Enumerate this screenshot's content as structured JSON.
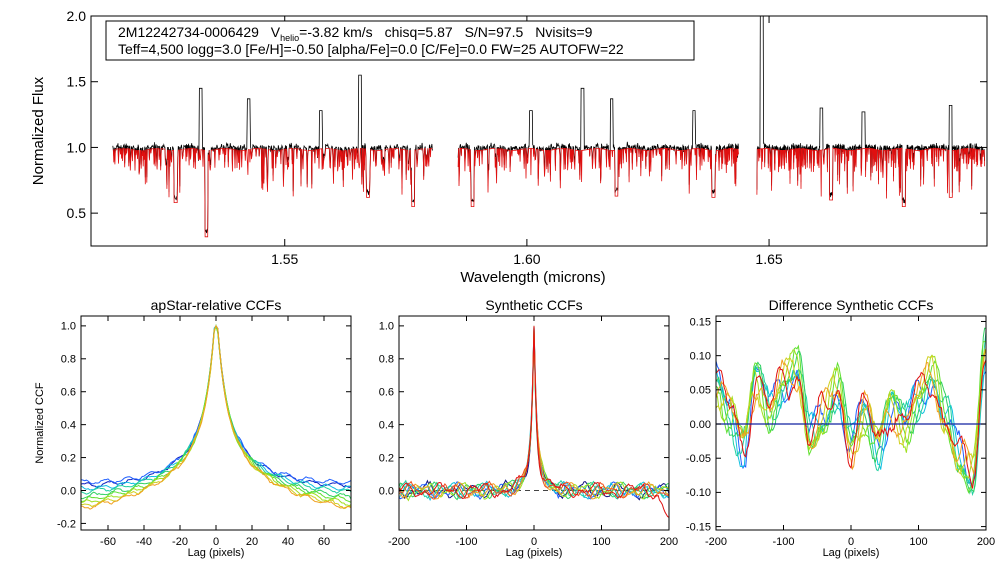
{
  "chart_data": [
    {
      "type": "line",
      "id": "spectrum",
      "title": "",
      "annotation": {
        "star": "2M12242734-0006429",
        "vhelio_prefix": "V",
        "vhelio_sub": "helio",
        "vhelio_value": "=-3.82 km/s",
        "chisq": "chisq=5.87",
        "sn": "S/N=97.5",
        "nvisits": "Nvisits=9",
        "line2": "Teff=4,500 logg=3.0 [Fe/H]=-0.50 [alpha/Fe]=0.0 [C/Fe]=0.0 FW=25 AUTOFW=22"
      },
      "xlabel": "Wavelength (microns)",
      "ylabel": "Normalized Flux",
      "xlim": [
        1.51,
        1.695
      ],
      "ylim": [
        0.25,
        2.0
      ],
      "xticks": [
        1.55,
        1.6,
        1.65
      ],
      "xtick_labels": [
        "1.55",
        "1.60",
        "1.65"
      ],
      "yticks": [
        0.5,
        1.0,
        1.5,
        2.0
      ],
      "ytick_labels": [
        "0.5",
        "1.0",
        "1.5",
        "2.0"
      ],
      "chips": [
        [
          1.5145,
          1.5805
        ],
        [
          1.5858,
          1.6437
        ],
        [
          1.6475,
          1.6945
        ]
      ],
      "observed_emission": [
        [
          1.5327,
          1.45
        ],
        [
          1.5425,
          1.37
        ],
        [
          1.5575,
          1.28
        ],
        [
          1.5655,
          1.55
        ],
        [
          1.6008,
          1.28
        ],
        [
          1.6115,
          1.45
        ],
        [
          1.6175,
          1.37
        ],
        [
          1.6345,
          1.28
        ],
        [
          1.6485,
          2.0
        ],
        [
          1.6608,
          1.3
        ],
        [
          1.6695,
          1.27
        ],
        [
          1.6875,
          1.32
        ]
      ],
      "absorption": [
        [
          1.5338,
          0.32
        ],
        [
          1.5275,
          0.58
        ],
        [
          1.5672,
          0.62
        ],
        [
          1.5765,
          0.55
        ],
        [
          1.5888,
          0.55
        ],
        [
          1.6185,
          0.63
        ],
        [
          1.6385,
          0.62
        ],
        [
          1.6778,
          0.55
        ],
        [
          1.6628,
          0.6
        ],
        [
          1.6875,
          0.62
        ]
      ],
      "series": [
        {
          "name": "observed",
          "color": "#000000"
        },
        {
          "name": "model",
          "color": "#e01010"
        }
      ]
    },
    {
      "type": "line",
      "id": "apstar_ccf",
      "title": "apStar-relative CCFs",
      "xlabel": "Lag (pixels)",
      "ylabel": "Normalized CCF",
      "xlim": [
        -75,
        75
      ],
      "ylim": [
        -0.24,
        1.06
      ],
      "xticks": [
        -60,
        -40,
        -20,
        0,
        20,
        40,
        60
      ],
      "xtick_labels": [
        "-60",
        "-40",
        "-20",
        "0",
        "20",
        "40",
        "60"
      ],
      "yticks": [
        -0.2,
        0.0,
        0.2,
        0.4,
        0.6,
        0.8,
        1.0
      ],
      "ytick_labels": [
        "-0.2",
        "0.0",
        "0.2",
        "0.4",
        "0.6",
        "0.8",
        "1.0"
      ],
      "series": [
        {
          "name": "visit 1",
          "color": "#1020c0",
          "wing": 0.02
        },
        {
          "name": "visit 2",
          "color": "#2060ff",
          "wing": 0.04
        },
        {
          "name": "visit 3",
          "color": "#10c0e0",
          "wing": 0.0
        },
        {
          "name": "visit 4",
          "color": "#20d0a0",
          "wing": -0.02
        },
        {
          "name": "visit 5",
          "color": "#30d060",
          "wing": -0.05
        },
        {
          "name": "visit 6",
          "color": "#60e030",
          "wing": -0.07
        },
        {
          "name": "visit 7",
          "color": "#a0e020",
          "wing": -0.09
        },
        {
          "name": "visit 8",
          "color": "#d0d020",
          "wing": -0.11
        },
        {
          "name": "visit 9",
          "color": "#f0a020",
          "wing": -0.12
        }
      ]
    },
    {
      "type": "line",
      "id": "synthetic_ccf",
      "title": "Synthetic CCFs",
      "xlabel": "Lag (pixels)",
      "ylabel": "",
      "xlim": [
        -200,
        200
      ],
      "ylim": [
        -0.24,
        1.06
      ],
      "xticks": [
        -200,
        -100,
        0,
        100,
        200
      ],
      "xtick_labels": [
        "-200",
        "-100",
        "0",
        "100",
        "200"
      ],
      "yticks": [
        0.0,
        0.2,
        0.4,
        0.6,
        0.8,
        1.0
      ],
      "ytick_labels": [
        "0.0",
        "0.2",
        "0.4",
        "0.6",
        "0.8",
        "1.0"
      ],
      "reference_level": 0.0,
      "series": [
        {
          "name": "visit 1",
          "color": "#101080"
        },
        {
          "name": "visit 2",
          "color": "#2060ff"
        },
        {
          "name": "visit 3",
          "color": "#10c0e0"
        },
        {
          "name": "visit 4",
          "color": "#20d0a0"
        },
        {
          "name": "visit 5",
          "color": "#30d060"
        },
        {
          "name": "visit 6",
          "color": "#a0e020"
        },
        {
          "name": "visit 7",
          "color": "#f0a020"
        },
        {
          "name": "visit 8",
          "color": "#f05020"
        },
        {
          "name": "visit 9",
          "color": "#e01010"
        }
      ]
    },
    {
      "type": "line",
      "id": "difference_ccf",
      "title": "Difference Synthetic CCFs",
      "xlabel": "Lag (pixels)",
      "ylabel": "",
      "xlim": [
        -200,
        200
      ],
      "ylim": [
        -0.155,
        0.158
      ],
      "xticks": [
        -200,
        -100,
        0,
        100,
        200
      ],
      "xtick_labels": [
        "-200",
        "-100",
        "0",
        "100",
        "200"
      ],
      "yticks": [
        -0.15,
        -0.1,
        -0.05,
        0.0,
        0.05,
        0.1,
        0.15
      ],
      "ytick_labels": [
        "-0.15",
        "-0.10",
        "-0.05",
        "0.00",
        "0.05",
        "0.10",
        "0.15"
      ],
      "reference_level": 0.0,
      "anchors_x": [
        -200,
        -180,
        -160,
        -140,
        -120,
        -100,
        -80,
        -60,
        -40,
        -20,
        0,
        20,
        40,
        60,
        80,
        100,
        120,
        140,
        160,
        180,
        200
      ],
      "anchors_y": [
        0.06,
        0.02,
        -0.03,
        0.07,
        0.02,
        0.06,
        0.08,
        -0.02,
        0.01,
        0.05,
        -0.03,
        0.02,
        -0.03,
        0.03,
        0.0,
        0.04,
        0.07,
        0.01,
        -0.05,
        -0.08,
        0.11
      ],
      "series": [
        {
          "name": "visit 1",
          "color": "#2060ff"
        },
        {
          "name": "visit 2",
          "color": "#10c0e0"
        },
        {
          "name": "visit 3",
          "color": "#20d0a0"
        },
        {
          "name": "visit 4",
          "color": "#30d060"
        },
        {
          "name": "visit 5",
          "color": "#60e030"
        },
        {
          "name": "visit 6",
          "color": "#a0e020"
        },
        {
          "name": "visit 7",
          "color": "#d0d020"
        },
        {
          "name": "visit 8",
          "color": "#f0a020"
        },
        {
          "name": "visit 9",
          "color": "#e01010"
        }
      ]
    }
  ]
}
